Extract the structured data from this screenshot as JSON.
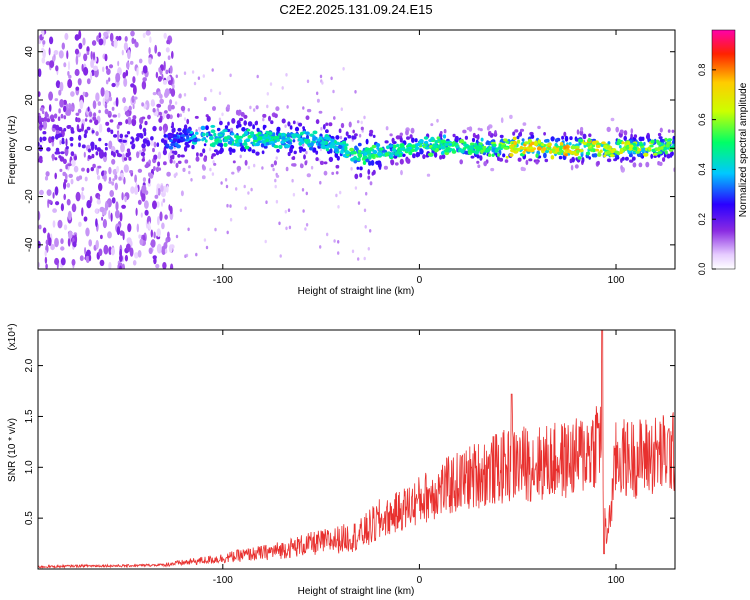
{
  "title": "C2E2.2025.131.09.24.E15",
  "chart_data": [
    {
      "type": "heatmap",
      "xlabel": "Height of straight line (km)",
      "ylabel": "Frequency (Hz)",
      "xlim": [
        -194,
        130
      ],
      "ylim": [
        -50,
        49
      ],
      "xticks": [
        -100,
        0,
        100
      ],
      "yticks": [
        -40,
        -20,
        0,
        20,
        40
      ],
      "colorbar": {
        "label": "Normalized spectral amplitude",
        "range": [
          0,
          0.96
        ],
        "ticks": [
          "0.0",
          "0.2",
          "0.4",
          "0.6",
          "0.8"
        ]
      },
      "ridge": {
        "x": [
          -194,
          -150,
          -125,
          -110,
          -95,
          -80,
          -65,
          -50,
          -40,
          -32,
          -25,
          -15,
          -5,
          0,
          10,
          30,
          50,
          70,
          90,
          110,
          130
        ],
        "frequency": [
          3,
          3,
          4,
          5,
          4,
          4,
          4,
          3,
          0,
          -3,
          -2,
          -1,
          0,
          1,
          1,
          0,
          1,
          0,
          0,
          0,
          1
        ],
        "peak_amplitude": [
          0.3,
          0.3,
          0.35,
          0.5,
          0.55,
          0.55,
          0.5,
          0.5,
          0.5,
          0.65,
          0.6,
          0.55,
          0.55,
          0.6,
          0.6,
          0.6,
          0.8,
          0.85,
          0.8,
          0.75,
          0.6
        ]
      }
    },
    {
      "type": "line",
      "xlabel": "Height of straight line (km)",
      "ylabel": "SNR (10 * v/v)",
      "ymultiplier": "(x10⁴)",
      "xlim": [
        -194,
        130
      ],
      "ylim": [
        0,
        2.35
      ],
      "xticks": [
        -100,
        0,
        100
      ],
      "yticks": [
        0.5,
        1.0,
        1.5,
        2.0
      ],
      "series": [
        {
          "color": "#e8302e",
          "x": [
            -194,
            -170,
            -150,
            -130,
            -120,
            -110,
            -100,
            -90,
            -80,
            -70,
            -60,
            -50,
            -40,
            -30,
            -20,
            -10,
            0,
            10,
            20,
            30,
            40,
            50,
            60,
            70,
            80,
            88,
            92,
            95,
            97,
            100,
            110,
            120,
            130
          ],
          "y": [
            0.02,
            0.03,
            0.03,
            0.04,
            0.06,
            0.08,
            0.1,
            0.13,
            0.15,
            0.18,
            0.22,
            0.25,
            0.28,
            0.32,
            0.45,
            0.55,
            0.65,
            0.75,
            0.82,
            0.9,
            0.95,
            1.0,
            1.0,
            1.02,
            1.05,
            1.15,
            1.3,
            0.3,
            0.5,
            1.05,
            1.05,
            1.08,
            1.1
          ]
        }
      ],
      "peaks": [
        {
          "x": 47,
          "y": 1.72
        },
        {
          "x": 93,
          "y": 2.35
        },
        {
          "x": 94,
          "y": 0.15
        }
      ]
    }
  ]
}
